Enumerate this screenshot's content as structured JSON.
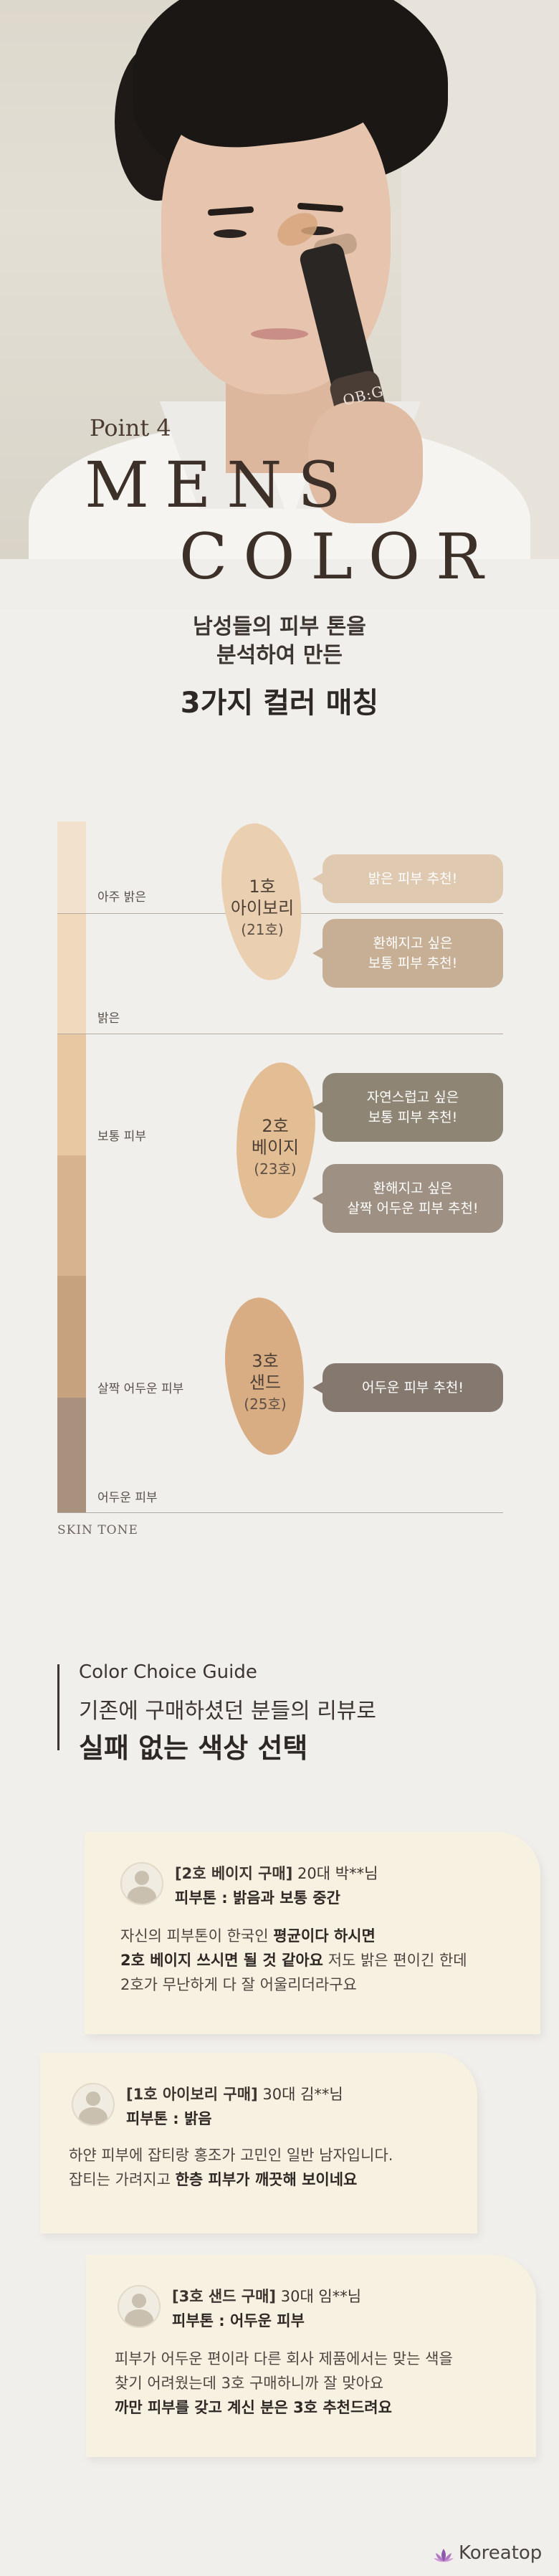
{
  "hero": {
    "point_label": "Point 4",
    "title_line1": "MENS",
    "title_line2": "COLOR",
    "product_logo": "OB:G",
    "intro_line1": "남성들의 피부 톤을",
    "intro_line2": "분석하여 만든",
    "intro_line3": "3가지 컬러 매칭"
  },
  "chart": {
    "axis_label": "SKIN TONE",
    "tone_labels": [
      "아주 밝은",
      "밝은",
      "보통 피부",
      "살짝 어두운 피부",
      "어두운 피부"
    ],
    "band_colors": [
      "#f2e2cd",
      "#f0d9bd",
      "#e8c8a3",
      "#d7b48f",
      "#c7a27f",
      "#a8927d"
    ],
    "shades": [
      {
        "number": "1호",
        "name": "아이보리",
        "code": "(21호)",
        "color": "#ead0b1"
      },
      {
        "number": "2호",
        "name": "베이지",
        "code": "(23호)",
        "color": "#e3bd94"
      },
      {
        "number": "3호",
        "name": "샌드",
        "code": "(25호)",
        "color": "#d9ad84"
      }
    ],
    "bubbles": [
      {
        "line1": "밝은 피부 추천!",
        "line2": ""
      },
      {
        "line1": "환해지고 싶은",
        "line2": "보통 피부 추천!"
      },
      {
        "line1": "자연스럽고 싶은",
        "line2": "보통 피부 추천!"
      },
      {
        "line1": "환해지고 싶은",
        "line2": "살짝 어두운 피부 추천!"
      },
      {
        "line1": "어두운 피부 추천!",
        "line2": ""
      }
    ]
  },
  "guide": {
    "title_en": "Color Choice Guide",
    "subtitle": "기존에 구매하셨던 분들의 리뷰로",
    "headline": "실패 없는 색상 선택"
  },
  "reviews": [
    {
      "purchase": "[2호 베이지 구매]",
      "user": "20대 박**님",
      "tone": "피부톤 : 밝음과 보통 중간",
      "lines": [
        {
          "parts": [
            {
              "t": "자신의 피부톤이 한국인 ",
              "b": false
            },
            {
              "t": "평균이다 하시면",
              "b": true
            }
          ]
        },
        {
          "parts": [
            {
              "t": "2호 베이지 쓰시면 될 것 같아요",
              "b": true
            },
            {
              "t": " 저도 밝은 편이긴 한데",
              "b": false
            }
          ]
        },
        {
          "parts": [
            {
              "t": "2호가 무난하게 다 잘 어울리더라구요",
              "b": false
            }
          ]
        }
      ]
    },
    {
      "purchase": "[1호 아이보리 구매]",
      "user": "30대 김**님",
      "tone": "피부톤 : 밝음",
      "lines": [
        {
          "parts": [
            {
              "t": "하얀 피부에 잡티랑 홍조가 고민인 일반 남자입니다.",
              "b": false
            }
          ]
        },
        {
          "parts": [
            {
              "t": "잡티는 가려지고 ",
              "b": false
            },
            {
              "t": "한층 피부가 깨끗해 보이네요",
              "b": true
            }
          ]
        }
      ]
    },
    {
      "purchase": "[3호 샌드 구매]",
      "user": "30대 임**님",
      "tone": "피부톤 : 어두운 피부",
      "lines": [
        {
          "parts": [
            {
              "t": "피부가 어두운 편이라 다른 회사 제품에서는 맞는 색을",
              "b": false
            }
          ]
        },
        {
          "parts": [
            {
              "t": "찾기 어려웠는데 3호 구매하니까 잘 맞아요",
              "b": false
            }
          ]
        },
        {
          "parts": [
            {
              "t": "까만 피부를 갖고 계신 분은 3호 추천드려요",
              "b": true
            }
          ]
        }
      ]
    }
  ],
  "footer": {
    "brand": "Koreatop"
  }
}
